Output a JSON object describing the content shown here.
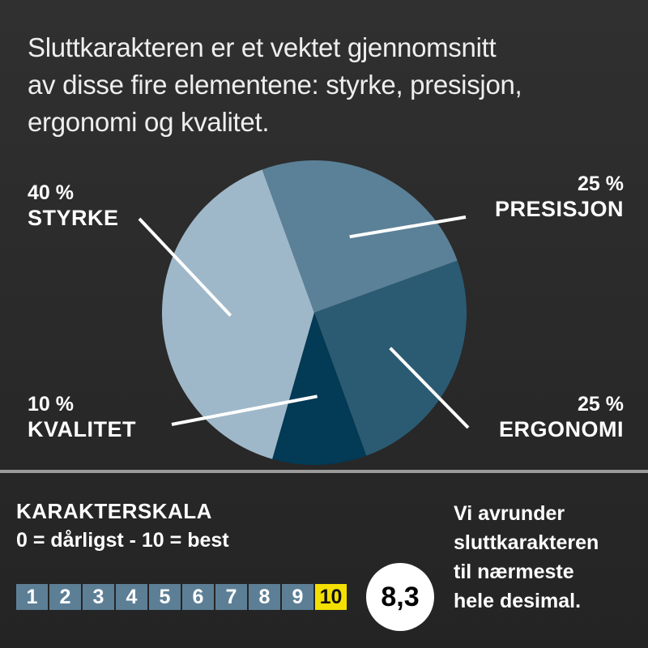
{
  "intro": {
    "lines": [
      "Sluttkarakteren er et vektet gjennomsnitt",
      "av disse fire elementene: styrke, presisjon,",
      "ergonomi og kvalitet."
    ]
  },
  "chart_data": {
    "type": "pie",
    "title": "",
    "slices": [
      {
        "name": "STYRKE",
        "label": "40 %",
        "value": 40,
        "color": "#9fb8c9"
      },
      {
        "name": "PRESISJON",
        "label": "25 %",
        "value": 25,
        "color": "#5b8198"
      },
      {
        "name": "ERGONOMI",
        "label": "25 %",
        "value": 25,
        "color": "#2b5b73"
      },
      {
        "name": "KVALITET",
        "label": "10 %",
        "value": 10,
        "color": "#033a55"
      }
    ]
  },
  "scale": {
    "title": "KARAKTERSKALA",
    "subtitle": "0 = dårligst - 10 = best",
    "cells": [
      "1",
      "2",
      "3",
      "4",
      "5",
      "6",
      "7",
      "8",
      "9",
      "10"
    ],
    "highlighted": "10",
    "cell_color": "#5d7f96",
    "highlight_color": "#f4e000",
    "score": "8,3"
  },
  "note": {
    "lines": [
      "Vi avrunder",
      "sluttkarakteren",
      "til nærmeste",
      "hele desimal."
    ]
  }
}
